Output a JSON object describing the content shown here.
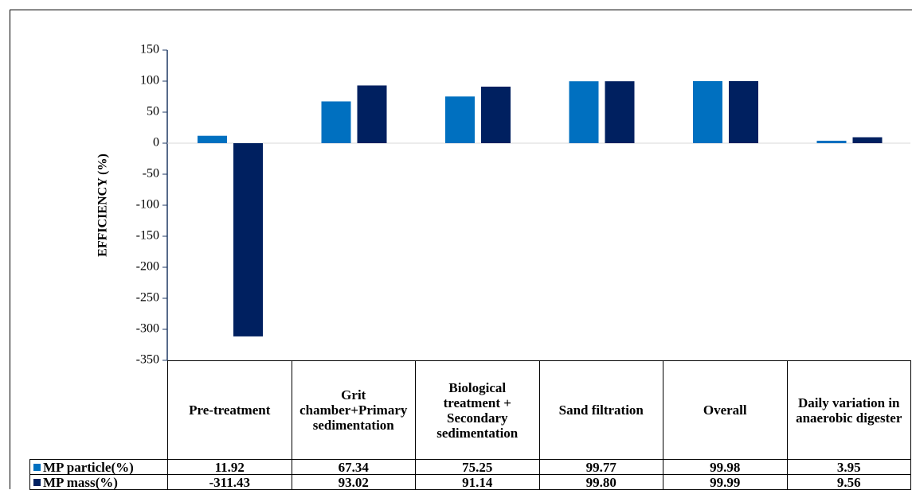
{
  "chart_data": {
    "type": "bar",
    "ylabel": "EFFICIENCY (%)",
    "categories": [
      "Pre-treatment",
      "Grit chamber+Primary sedimentation",
      "Biological treatment + Secondary sedimentation",
      "Sand filtration",
      "Overall",
      "Daily variation in anaerobic digester"
    ],
    "series": [
      {
        "name": "MP particle(%)",
        "color": "#0070c0",
        "values": [
          11.92,
          67.34,
          75.25,
          99.77,
          99.98,
          3.95
        ],
        "value_labels": [
          "11.92",
          "67.34",
          "75.25",
          "99.77",
          "99.98",
          "3.95"
        ]
      },
      {
        "name": "MP mass(%)",
        "color": "#002060",
        "values": [
          -311.43,
          93.02,
          91.14,
          99.8,
          99.99,
          9.56
        ],
        "value_labels": [
          "-311.43",
          "93.02",
          "91.14",
          "99.80",
          "99.99",
          "9.56"
        ]
      }
    ],
    "ylim": [
      -350,
      150
    ],
    "yticks": [
      -350,
      -300,
      -250,
      -200,
      -150,
      -100,
      -50,
      0,
      50,
      100,
      150
    ]
  }
}
